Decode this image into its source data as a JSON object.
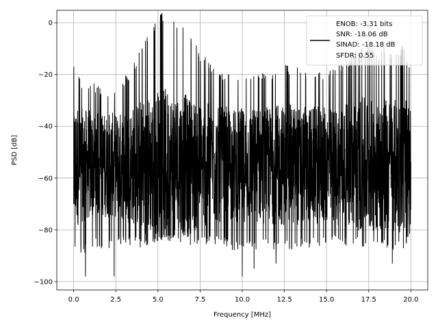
{
  "chart_data": {
    "type": "line",
    "title": "",
    "xlabel": "Frequency [MHz]",
    "ylabel": "PSD [dB]",
    "xlim": [
      -1.0,
      21.0
    ],
    "ylim": [
      -103.2,
      4.8
    ],
    "grid": true,
    "xticks": [
      0,
      2.5,
      5,
      7.5,
      10,
      12.5,
      15,
      17.5,
      20
    ],
    "xtick_labels": [
      "0.0",
      "2.5",
      "5.0",
      "7.5",
      "10.0",
      "12.5",
      "15.0",
      "17.5",
      "20.0"
    ],
    "yticks": [
      0,
      -20,
      -40,
      -60,
      -80,
      -100
    ],
    "ytick_labels": [
      "0",
      "−20",
      "−40",
      "−60",
      "−80",
      "−100"
    ],
    "legend_placement": "top-right",
    "legend_lines": [
      "ENOB: -3.31 bits",
      "SNR: -18.06 dB",
      "SINAD: -18.18 dB",
      "SFDR: 0.55"
    ],
    "series": [
      {
        "name": "PSD",
        "color": "#000000",
        "description_of_values": "dense noisy spectrum; envelope sampled every 0.5 MHz",
        "x": [
          0,
          0.5,
          1,
          1.5,
          2,
          2.5,
          3,
          3.5,
          4,
          4.5,
          5,
          5.5,
          6,
          6.5,
          7,
          7.5,
          8,
          8.5,
          9,
          9.5,
          10,
          10.5,
          11,
          11.5,
          12,
          12.5,
          13,
          13.5,
          14,
          14.5,
          15,
          15.5,
          16,
          16.5,
          17,
          17.5,
          18,
          18.5,
          19,
          19.5,
          20
        ],
        "peak_envelope": [
          -17,
          -27,
          -27,
          -28,
          -30,
          -28,
          -25,
          -20,
          -13,
          -8,
          0,
          0,
          -1,
          -5,
          -10,
          -15,
          -18,
          -22,
          -22,
          -25,
          -25,
          -25,
          -23,
          -22,
          -22,
          -20,
          -20,
          -22,
          -22,
          -22,
          -22,
          -20,
          -20,
          -15,
          -12,
          -12,
          -15,
          -12,
          -15,
          -12,
          -20
        ],
        "trough_envelope": [
          -88,
          -90,
          -88,
          -87,
          -88,
          -86,
          -86,
          -86,
          -87,
          -86,
          -85,
          -85,
          -84,
          -85,
          -86,
          -86,
          -86,
          -86,
          -87,
          -88,
          -88,
          -88,
          -88,
          -87,
          -88,
          -88,
          -88,
          -87,
          -87,
          -87,
          -86,
          -86,
          -86,
          -86,
          -87,
          -87,
          -87,
          -87,
          -88,
          -88,
          -85
        ],
        "deep_minima": [
          [
            0.7,
            -98
          ],
          [
            2.4,
            -98
          ],
          [
            10.0,
            -98
          ],
          [
            18.9,
            -93
          ],
          [
            10.7,
            -95
          ],
          [
            12.0,
            -93
          ]
        ]
      }
    ]
  }
}
